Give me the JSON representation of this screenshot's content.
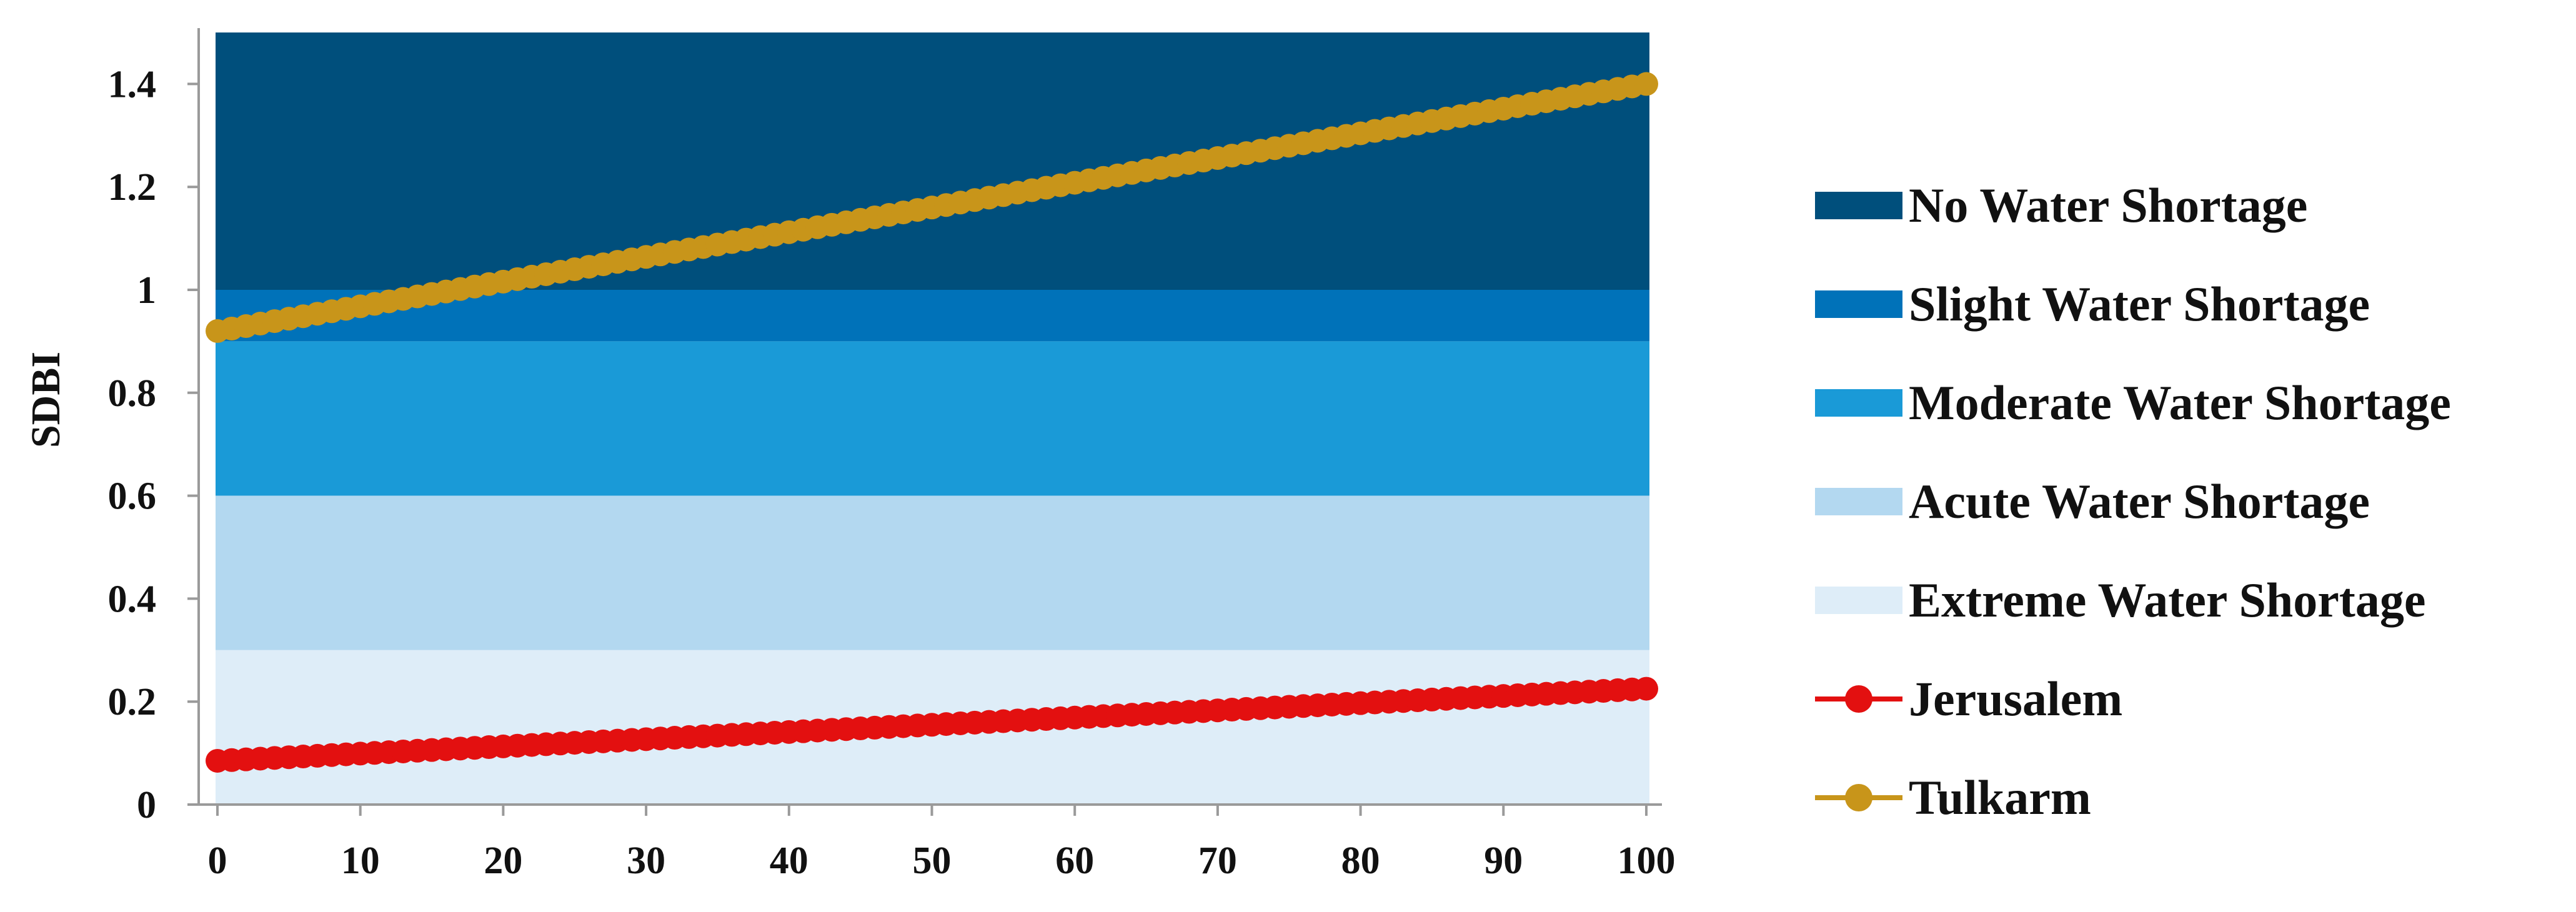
{
  "chart_data": {
    "type": "line",
    "title": "",
    "xlabel": "",
    "ylabel": "SDBI",
    "xlim": [
      0,
      100
    ],
    "ylim": [
      0,
      1.5
    ],
    "x_ticks": [
      0,
      10,
      20,
      30,
      40,
      50,
      60,
      70,
      80,
      90,
      100
    ],
    "y_ticks": [
      0,
      0.2,
      0.4,
      0.6,
      0.8,
      1,
      1.2,
      1.4
    ],
    "y_tick_labels": [
      "0",
      "0.2",
      "0.4",
      "0.6",
      "0.8",
      "1",
      "1.2",
      "1.4"
    ],
    "grid": false,
    "legend_position": "right",
    "bands": [
      {
        "name": "No Water Shortage",
        "from": 1.0,
        "to": 1.5,
        "color": "#004f7c"
      },
      {
        "name": "Slight Water Shortage",
        "from": 0.9,
        "to": 1.0,
        "color": "#0072b9"
      },
      {
        "name": "Moderate Water Shortage",
        "from": 0.6,
        "to": 0.9,
        "color": "#1a9ad7"
      },
      {
        "name": "Acute Water Shortage",
        "from": 0.3,
        "to": 0.6,
        "color": "#b3d8f0"
      },
      {
        "name": "Extreme Water Shortage",
        "from": 0.0,
        "to": 0.3,
        "color": "#deedf8"
      }
    ],
    "series": [
      {
        "name": "Jerusalem",
        "color": "#e31010",
        "x_start": 0,
        "x_end": 100,
        "x_step": 1,
        "y_start": 0.085,
        "y_end": 0.225
      },
      {
        "name": "Tulkarm",
        "color": "#c8951a",
        "x_start": 0,
        "x_end": 100,
        "x_step": 1,
        "y_start": 0.92,
        "y_end": 1.4
      }
    ]
  }
}
